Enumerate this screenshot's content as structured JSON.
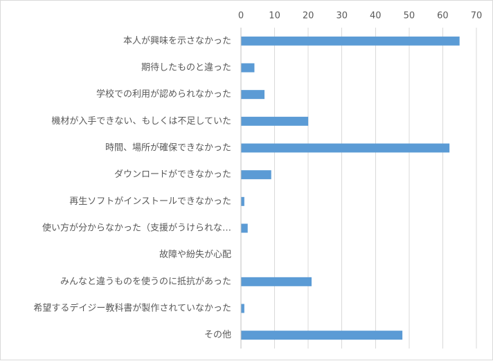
{
  "chart_data": {
    "type": "bar",
    "orientation": "horizontal",
    "categories": [
      "本人が興味を示さなかった",
      "期待したものと違った",
      "学校での利用が認められなかった",
      "機材が入手できない、もしくは不足していた",
      "時間、場所が確保できなかった",
      "ダウンロードができなかった",
      "再生ソフトがインストールできなかった",
      "使い方が分からなかった（支援がうけられな…",
      "故障や紛失が心配",
      "みんなと違うものを使うのに抵抗があった",
      "希望するデイジー教科書が製作されていなかった",
      "その他"
    ],
    "values": [
      65,
      4,
      7,
      20,
      62,
      9,
      1,
      2,
      0,
      21,
      1,
      48
    ],
    "xlim": [
      0,
      70
    ],
    "xticks": [
      "0",
      "10",
      "20",
      "30",
      "40",
      "50",
      "60",
      "70"
    ],
    "title": "",
    "xlabel": "",
    "ylabel": "",
    "grid": true,
    "axis_position": "top",
    "bar_color": "#5b9bd5",
    "grid_color": "#d9d9d9"
  }
}
